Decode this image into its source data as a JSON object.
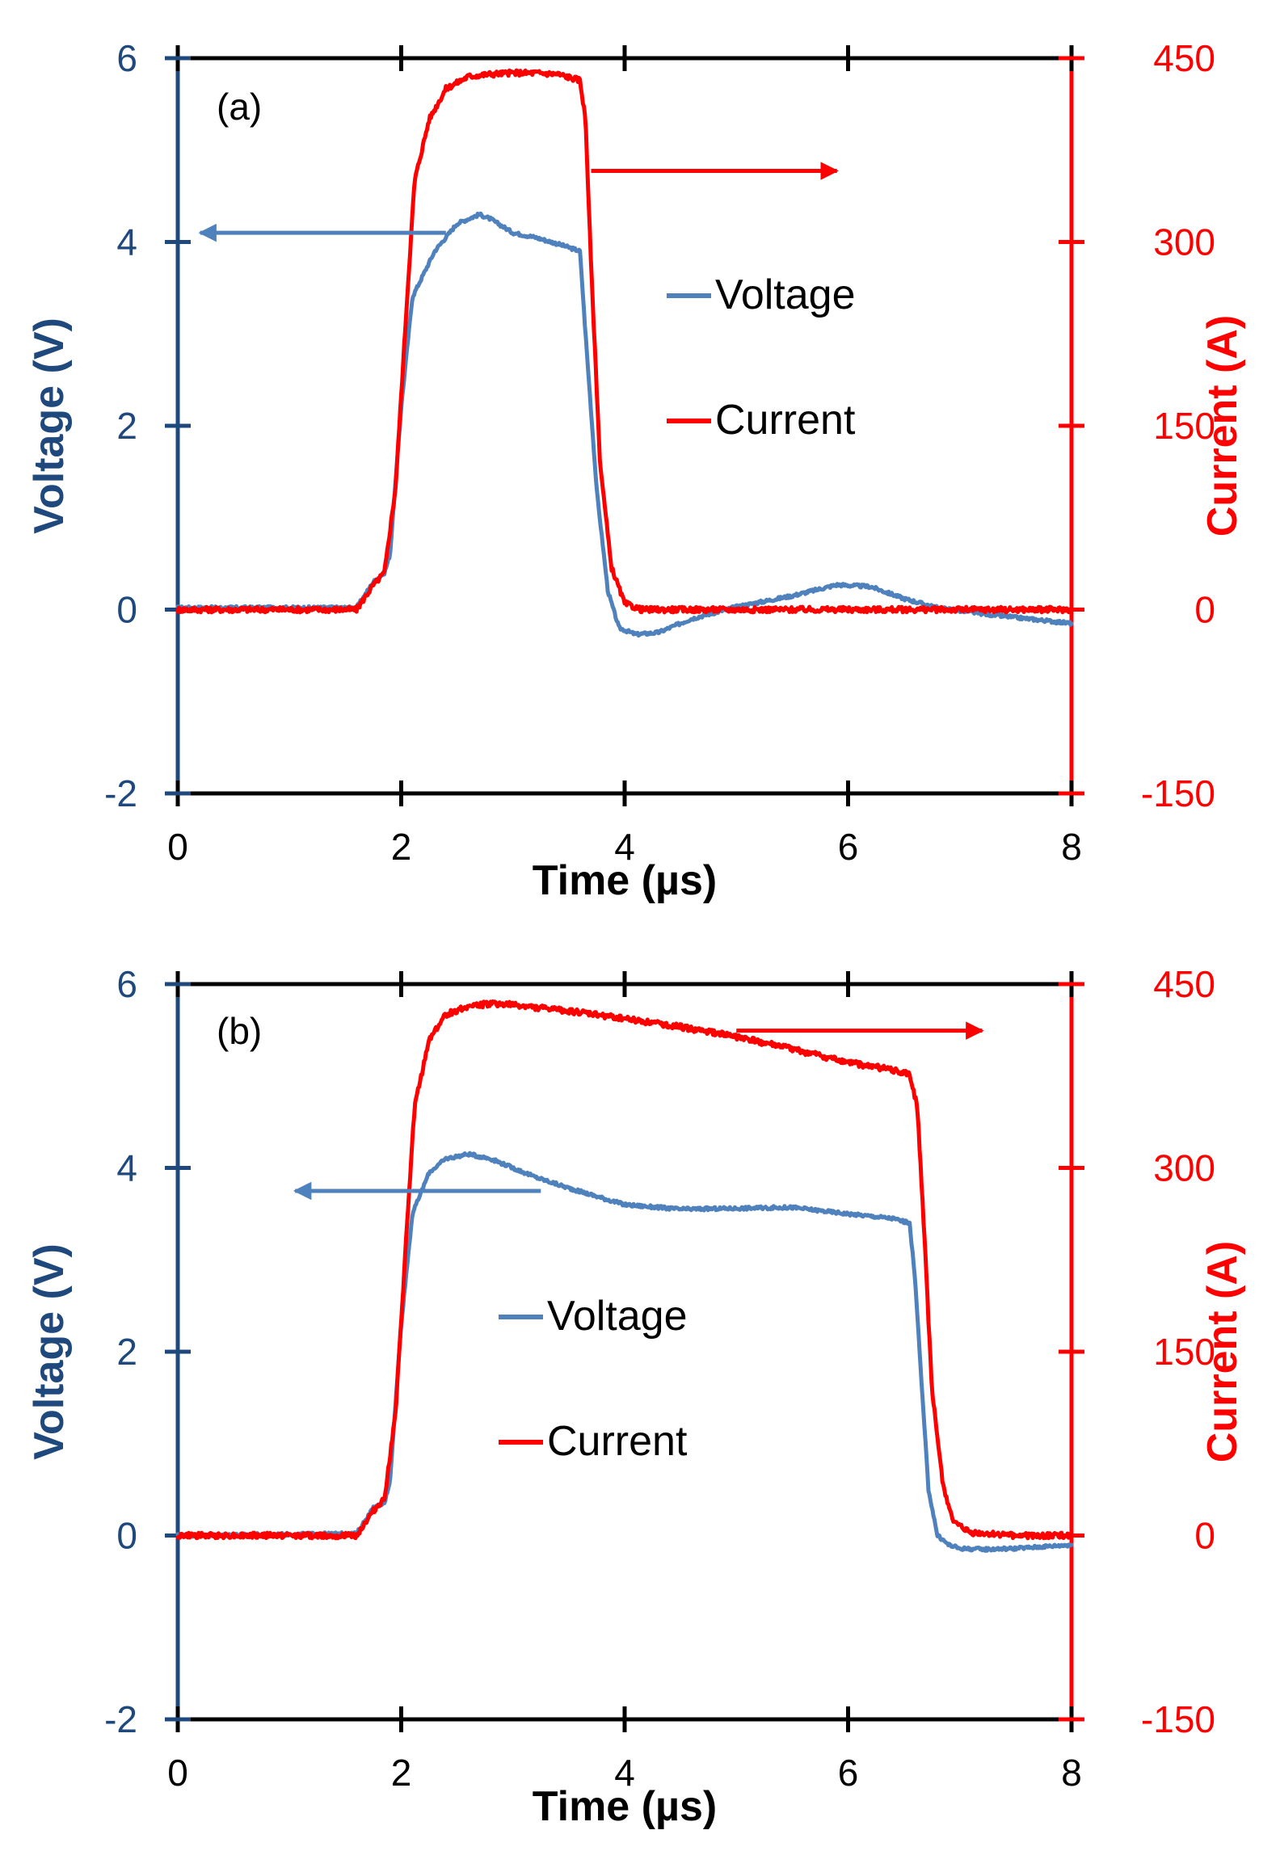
{
  "colors": {
    "voltage": "#4f81bd",
    "current": "#ff0000",
    "left_axis": "#1f497d",
    "frame": "#000000"
  },
  "chart_data": [
    {
      "type": "line",
      "panel_label": "(a)",
      "xlabel": "Time (µs)",
      "ylabel_left": "Voltage (V)",
      "ylabel_right": "Current (A)",
      "xlim": [
        0,
        8
      ],
      "ylim_left": [
        -2,
        6
      ],
      "ylim_right": [
        -150,
        450
      ],
      "x_ticks": [
        0,
        2,
        4,
        6,
        8
      ],
      "x_tick_labels": [
        "0",
        "2",
        "4",
        "6",
        "8"
      ],
      "y_left_ticks": [
        -2,
        0,
        2,
        4,
        6
      ],
      "y_left_tick_labels": [
        "-2",
        "0",
        "2",
        "4",
        "6"
      ],
      "y_right_ticks": [
        -150,
        0,
        150,
        300,
        450
      ],
      "y_right_tick_labels": [
        "-150",
        "0",
        "150",
        "300",
        "450"
      ],
      "legend": [
        "Voltage",
        "Current"
      ],
      "series": [
        {
          "name": "Voltage",
          "axis": "left",
          "x": [
            0,
            1.6,
            1.75,
            1.85,
            1.9,
            2.0,
            2.1,
            2.3,
            2.5,
            2.7,
            2.8,
            3.0,
            3.2,
            3.4,
            3.6,
            3.65,
            3.75,
            3.85,
            3.95,
            4.1,
            4.3,
            4.6,
            5.0,
            5.5,
            5.9,
            6.2,
            6.5,
            6.8,
            7.3,
            8.0
          ],
          "y": [
            0.02,
            0.02,
            0.3,
            0.4,
            0.6,
            2.2,
            3.4,
            3.9,
            4.2,
            4.3,
            4.25,
            4.1,
            4.05,
            3.98,
            3.9,
            3.0,
            1.3,
            0.2,
            -0.2,
            -0.27,
            -0.25,
            -0.1,
            0.03,
            0.15,
            0.27,
            0.25,
            0.12,
            0.02,
            -0.06,
            -0.15
          ]
        },
        {
          "name": "Current",
          "axis": "right",
          "x": [
            0,
            1.6,
            1.75,
            1.85,
            1.95,
            2.05,
            2.12,
            2.25,
            2.4,
            2.6,
            2.8,
            3.0,
            3.2,
            3.4,
            3.6,
            3.65,
            3.7,
            3.78,
            3.88,
            4.0,
            4.15,
            4.4,
            5.0,
            6.0,
            7.0,
            8.0
          ],
          "y": [
            0,
            0,
            20,
            30,
            100,
            250,
            350,
            400,
            425,
            435,
            437,
            438,
            438,
            437,
            432,
            400,
            280,
            120,
            35,
            5,
            0,
            0,
            0,
            0,
            0,
            0
          ]
        }
      ],
      "annotations": [
        {
          "type": "arrow",
          "direction": "left",
          "series": "Voltage",
          "x_from": 2.4,
          "x_to": 0.2,
          "y_left": 4.1
        },
        {
          "type": "arrow",
          "direction": "right",
          "series": "Current",
          "x_from": 3.7,
          "x_to": 5.9,
          "y_right": 358
        }
      ]
    },
    {
      "type": "line",
      "panel_label": "(b)",
      "xlabel": "Time (µs)",
      "ylabel_left": "Voltage (V)",
      "ylabel_right": "Current (A)",
      "xlim": [
        0,
        8
      ],
      "ylim_left": [
        -2,
        6
      ],
      "ylim_right": [
        -150,
        450
      ],
      "x_ticks": [
        0,
        2,
        4,
        6,
        8
      ],
      "x_tick_labels": [
        "0",
        "2",
        "4",
        "6",
        "8"
      ],
      "y_left_ticks": [
        -2,
        0,
        2,
        4,
        6
      ],
      "y_left_tick_labels": [
        "-2",
        "0",
        "2",
        "4",
        "6"
      ],
      "y_right_ticks": [
        -150,
        0,
        150,
        300,
        450
      ],
      "y_right_tick_labels": [
        "-150",
        "0",
        "150",
        "300",
        "450"
      ],
      "legend": [
        "Voltage",
        "Current"
      ],
      "series": [
        {
          "name": "Voltage",
          "axis": "left",
          "x": [
            0,
            1.6,
            1.75,
            1.85,
            1.9,
            2.0,
            2.1,
            2.25,
            2.4,
            2.6,
            2.8,
            3.0,
            3.2,
            3.5,
            4.0,
            4.5,
            5.0,
            5.5,
            6.0,
            6.4,
            6.55,
            6.6,
            6.65,
            6.72,
            6.8,
            6.9,
            7.0,
            7.2,
            7.5,
            8.0
          ],
          "y": [
            0.0,
            0.02,
            0.3,
            0.35,
            0.6,
            2.3,
            3.5,
            3.95,
            4.1,
            4.15,
            4.1,
            4.0,
            3.9,
            3.78,
            3.6,
            3.55,
            3.56,
            3.57,
            3.5,
            3.45,
            3.4,
            2.8,
            1.8,
            0.5,
            0.0,
            -0.1,
            -0.14,
            -0.15,
            -0.14,
            -0.1
          ]
        },
        {
          "name": "Current",
          "axis": "right",
          "x": [
            0,
            1.6,
            1.75,
            1.85,
            1.95,
            2.05,
            2.12,
            2.25,
            2.4,
            2.6,
            2.8,
            3.0,
            3.5,
            4.0,
            4.5,
            5.0,
            5.5,
            6.0,
            6.4,
            6.55,
            6.62,
            6.68,
            6.75,
            6.85,
            6.95,
            7.1,
            7.5,
            8.0
          ],
          "y": [
            0,
            0,
            20,
            30,
            100,
            250,
            350,
            405,
            425,
            432,
            434,
            433,
            428,
            422,
            415,
            407,
            397,
            386,
            380,
            376,
            350,
            250,
            120,
            40,
            10,
            2,
            0,
            0
          ]
        }
      ],
      "annotations": [
        {
          "type": "arrow",
          "direction": "left",
          "series": "Voltage",
          "x_from": 3.25,
          "x_to": 1.05,
          "y_left": 3.75
        },
        {
          "type": "arrow",
          "direction": "right",
          "series": "Current",
          "x_from": 5.0,
          "x_to": 7.2,
          "y_right": 412
        }
      ]
    }
  ]
}
